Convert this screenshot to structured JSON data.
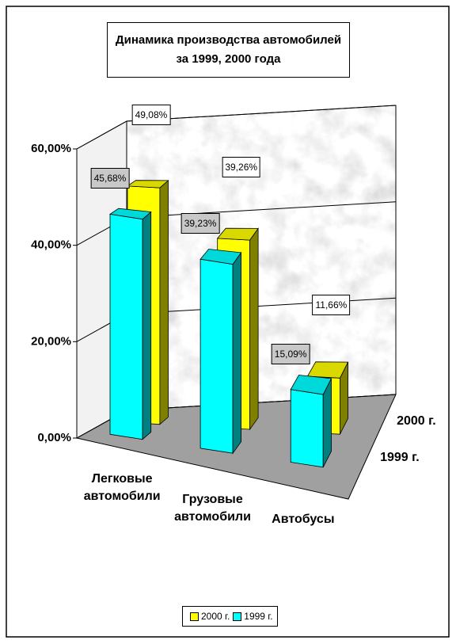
{
  "chart_data": {
    "type": "bar3d",
    "title": [
      "Динамика производства автомобилей",
      "за 1999, 2000 года"
    ],
    "categories": [
      "Легковые автомобили",
      "Грузовые автомобили",
      "Автобусы"
    ],
    "series": [
      {
        "name": "2000 г.",
        "color": "#ffff00",
        "values": [
          49.08,
          39.26,
          11.66
        ],
        "value_labels": [
          "49,08%",
          "39,26%",
          "11,66%"
        ]
      },
      {
        "name": "1999 г.",
        "color": "#00ffff",
        "values": [
          45.68,
          39.23,
          15.09
        ],
        "value_labels": [
          "45,68%",
          "39,23%",
          "15,09%"
        ]
      }
    ],
    "ylim": [
      0,
      60
    ],
    "yticks": [
      {
        "value": 0,
        "label": "0,00%"
      },
      {
        "value": 20,
        "label": "20,00%"
      },
      {
        "value": 40,
        "label": "40,00%"
      },
      {
        "value": 60,
        "label": "60,00%"
      }
    ],
    "grid": true
  }
}
